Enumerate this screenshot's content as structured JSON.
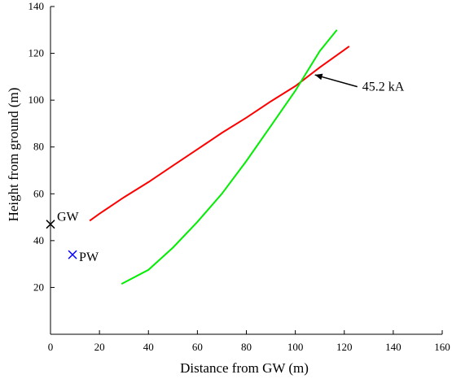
{
  "chart_data": {
    "type": "line",
    "xlabel": "Distance from GW (m)",
    "ylabel": "Height from ground (m)",
    "xlim": [
      0,
      160
    ],
    "ylim": [
      0,
      140
    ],
    "x_ticks": [
      0,
      20,
      40,
      60,
      80,
      100,
      120,
      140,
      160
    ],
    "y_ticks": [
      20,
      40,
      60,
      80,
      100,
      120,
      140
    ],
    "grid": false,
    "series": [
      {
        "color": "#ff0000",
        "points": [
          [
            16,
            48.5
          ],
          [
            20,
            51.5
          ],
          [
            30,
            58.5
          ],
          [
            40,
            65
          ],
          [
            50,
            72
          ],
          [
            60,
            79
          ],
          [
            70,
            86
          ],
          [
            80,
            92.5
          ],
          [
            90,
            99.5
          ],
          [
            100,
            106
          ],
          [
            110,
            114
          ],
          [
            120,
            121.5
          ],
          [
            122,
            123
          ]
        ]
      },
      {
        "color": "#00ee00",
        "points": [
          [
            29,
            21.5
          ],
          [
            40,
            27.5
          ],
          [
            50,
            37
          ],
          [
            60,
            48
          ],
          [
            70,
            60
          ],
          [
            80,
            74
          ],
          [
            90,
            89
          ],
          [
            100,
            104
          ],
          [
            110,
            121
          ],
          [
            117,
            130
          ]
        ]
      }
    ],
    "markers": [
      {
        "label": "GW",
        "x": 0,
        "y": 47,
        "symbol": "x",
        "color": "#000000"
      },
      {
        "label": "PW",
        "x": 9,
        "y": 34,
        "symbol": "x",
        "color": "#0000ff"
      }
    ],
    "annotations": [
      {
        "text": "45.2 kA",
        "point": [
          106,
          111.5
        ],
        "text_at": [
          124,
          104
        ]
      }
    ]
  }
}
